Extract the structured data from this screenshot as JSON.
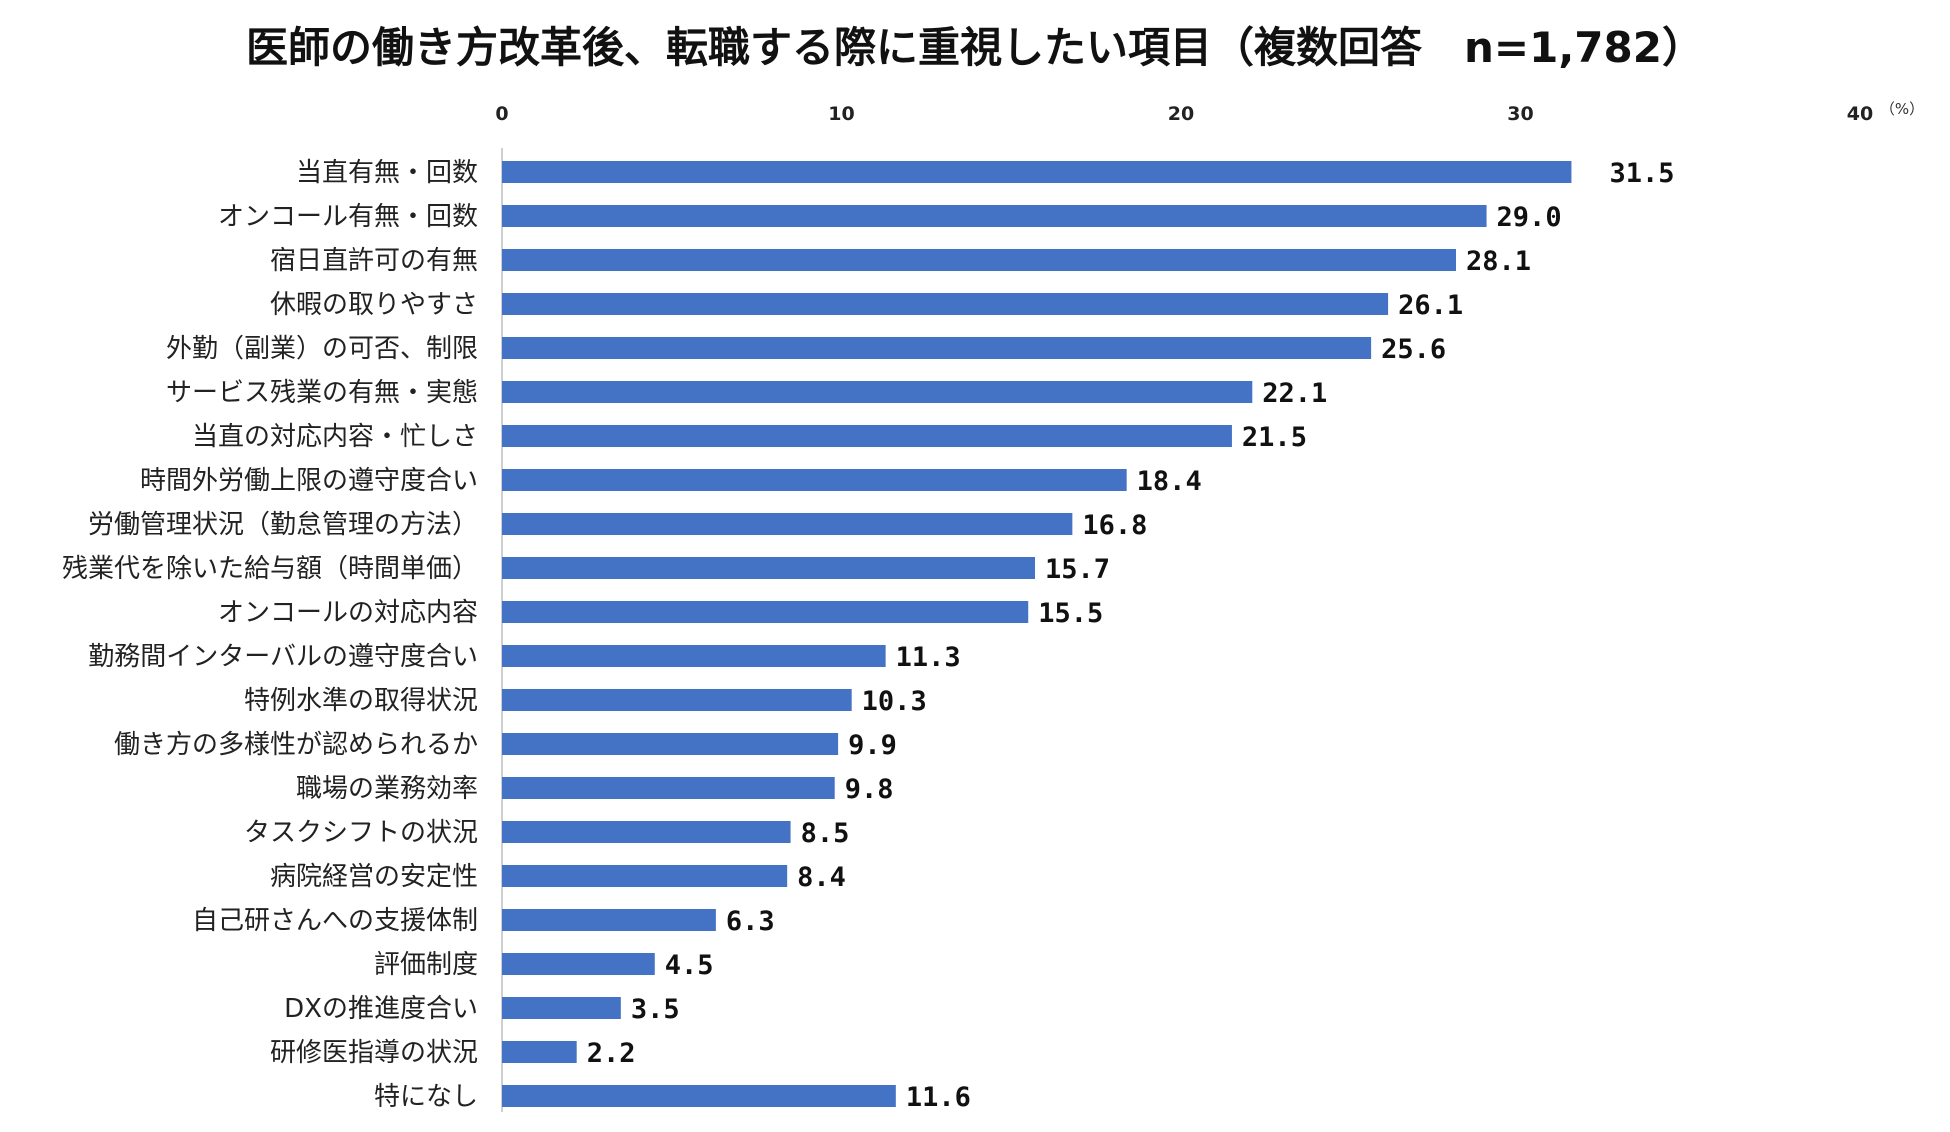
{
  "chart_data": {
    "type": "bar",
    "orientation": "horizontal",
    "title": "医師の働き方改革後、転職する際に重視したい項目（複数回答　n=1,782）",
    "unit_label": "（%）",
    "xlim": [
      0,
      40
    ],
    "ticks": [
      "0",
      "10",
      "20",
      "30",
      "40"
    ],
    "bar_color": "#4472C4",
    "highlight_color": "#E0185A",
    "value_color": "#111111",
    "categories": [
      "当直有無・回数",
      "オンコール有無・回数",
      "宿日直許可の有無",
      "休暇の取りやすさ",
      "外勤（副業）の可否、制限",
      "サービス残業の有無・実態",
      "当直の対応内容・忙しさ",
      "時間外労働上限の遵守度合い",
      "労働管理状況（勤怠管理の方法）",
      "残業代を除いた給与額（時間単価）",
      "オンコールの対応内容",
      "勤務間インターバルの遵守度合い",
      "特例水準の取得状況",
      "働き方の多様性が認められるか",
      "職場の業務効率",
      "タスクシフトの状況",
      "病院経営の安定性",
      "自己研さんへの支援体制",
      "評価制度",
      "DXの推進度合い",
      "研修医指導の状況",
      "特になし"
    ],
    "values": [
      31.5,
      29.0,
      28.1,
      26.1,
      25.6,
      22.1,
      21.5,
      18.4,
      16.8,
      15.7,
      15.5,
      11.3,
      10.3,
      9.9,
      9.8,
      8.5,
      8.4,
      6.3,
      4.5,
      3.5,
      2.2,
      11.6
    ],
    "value_labels": [
      "31.5",
      "29.0",
      "28.1",
      "26.1",
      "25.6",
      "22.1",
      "21.5",
      "18.4",
      "16.8",
      "15.7",
      "15.5",
      "11.3",
      "10.3",
      "9.9",
      "9.8",
      "8.5",
      "8.4",
      "6.3",
      "4.5",
      "3.5",
      "2.2",
      "11.6"
    ],
    "highlight_index": 0
  }
}
